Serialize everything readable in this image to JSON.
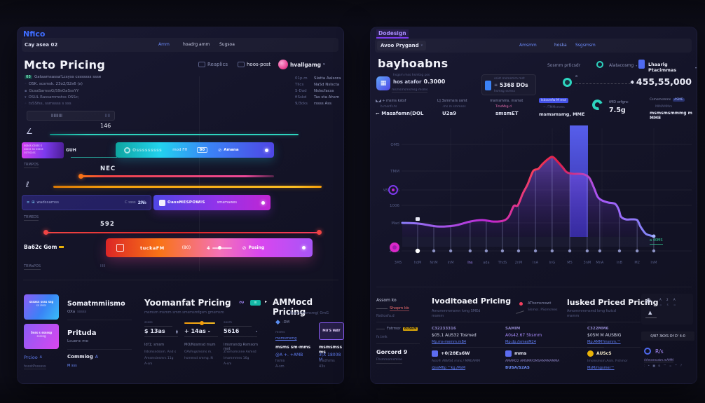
{
  "chart_data": {
    "type": "area-line with bar",
    "x_labels": [
      "3M5",
      "hdM",
      "NnM",
      "InM",
      "Ins",
      "ada",
      "ThdS",
      "2nM",
      "InA",
      "InG",
      "M5",
      "3nM",
      "MnA",
      "InB",
      "M2",
      "InM"
    ],
    "x_label_highlight_index": 4,
    "y_labels": [
      "OM5",
      "TMM",
      "TM5 2006",
      "1006",
      "Mad",
      "+006"
    ],
    "line": {
      "name": "price-trend",
      "points": [
        [
          0.0,
          12.6
        ],
        [
          0.067,
          11.9
        ],
        [
          0.139,
          9.4
        ],
        [
          0.206,
          10.1
        ],
        [
          0.269,
          13.8
        ],
        [
          0.317,
          15.1
        ],
        [
          0.361,
          13.8
        ],
        [
          0.4,
          14.5
        ],
        [
          0.422,
          18.2
        ],
        [
          0.442,
          27.7
        ],
        [
          0.458,
          28.3
        ],
        [
          0.478,
          39.0
        ],
        [
          0.497,
          47.2
        ],
        [
          0.519,
          59.1
        ],
        [
          0.539,
          61.0
        ],
        [
          0.556,
          65.4
        ],
        [
          0.581,
          70.4
        ],
        [
          0.597,
          71.7
        ],
        [
          0.617,
          67.3
        ],
        [
          0.636,
          62.3
        ],
        [
          0.653,
          57.9
        ],
        [
          0.678,
          56.6
        ],
        [
          0.7,
          56.6
        ],
        [
          0.722,
          56.0
        ],
        [
          0.742,
          52.8
        ],
        [
          0.761,
          43.4
        ],
        [
          0.775,
          35.8
        ],
        [
          0.792,
          32.7
        ],
        [
          0.817,
          30.8
        ],
        [
          0.844,
          29.6
        ],
        [
          0.858,
          24.5
        ],
        [
          0.867,
          18.2
        ],
        [
          0.886,
          15.7
        ],
        [
          0.908,
          15.7
        ],
        [
          0.931,
          15.1
        ],
        [
          0.944,
          9.4
        ],
        [
          0.964,
          3.1
        ],
        [
          0.983,
          1.3
        ],
        [
          0.997,
          0.6
        ]
      ],
      "color_stops": [
        "#8b7cf8",
        "#c026d3",
        "#f43f5e",
        "#e11d48",
        "#a855f7",
        "#818cf8"
      ]
    },
    "bar": {
      "t": 0.7,
      "value": 100,
      "color_top": "#5a62f5",
      "color_bottom": "#3c33c0"
    },
    "stems_t": [
      0.061,
      0.125,
      0.192,
      0.269,
      0.333,
      0.397,
      0.461,
      0.528,
      0.594,
      0.664,
      0.733,
      0.783,
      0.861,
      0.931,
      0.997
    ],
    "marker_stem_index": 0,
    "badge": {
      "text": "a 40MS",
      "color": "#34d399"
    }
  },
  "left": {
    "nav": {
      "logo": "Nfico",
      "breadcrumb": "Cay asea 02",
      "link1": "Amm",
      "link2": "hoadrg amm",
      "link3": "Sugsoa"
    },
    "header": {
      "title": "Mcto Pricing",
      "btn1": "Reaplics",
      "btn2": "hoos-post",
      "user": "hvallgamg",
      "caret": "▾"
    },
    "menu": {
      "i1_chip": "05",
      "i1": "Gataamsassa'Lcsyss csssssss ssse",
      "i2": "OSK. scsmsk. 23o2/32s6 (x)",
      "i3": "GcsaSamssG/S9sOaSssYY",
      "i4": "OSUL Rassammstss OSSc;",
      "i5": "tsSSfss, ssmssss s sss"
    },
    "meta": {
      "r1k": "01p.m",
      "r1v": "Slatta Aalsora",
      "r2k": "Tllcs",
      "r2v": "NaSd Nslscta",
      "r3k": "S-Dad",
      "r3v": "Nslscfacss",
      "r4k": "fiSskd",
      "r4v": "Tas sta Ahsm",
      "r5k": "9/3cks",
      "r5v": "rssss Ass"
    },
    "search": {
      "text": "IIIIIIIII",
      "hint": "IIII"
    },
    "sliders": {
      "v1": "146",
      "block1_l1": "ssass cssss s",
      "block1_l2": "sssss ss sssss",
      "block1_l3": "ssmsass",
      "block1_tag": "GUH",
      "pill1_t1": "Osssssssss",
      "pill1_t2": "mod FH",
      "pill1_chip": "80",
      "pill1_t3": "Amana",
      "lbl1": "TRMPOS",
      "v2": "NEC",
      "pill2_t1": "wadssamss",
      "pill2_t2": "C ssss",
      "pill2_t3": "2№",
      "pill2b_t1": "OassMESPOWIS",
      "pill2b_t2": "smamawes",
      "lbl2": "TRMEDS",
      "v3": "592",
      "bar3_label": "Ba62c Gom",
      "pill3_t1": "tuckaFM",
      "pill3_chip": "(80)",
      "pill3_t2": "4",
      "pill3_t3": "Posing",
      "lbl3": "TRMaPOS",
      "ticks": "IIIII"
    },
    "bottom": {
      "card1_l1": "sssass ssss ssg",
      "card1_l2": "ss Asss",
      "card1_title": "Somatmmiismo",
      "card1_sub": "OXa",
      "card1_sub2": "sssss",
      "card2_l1": "Ssss s sssssg",
      "card2_l2": "sssssg",
      "card2_title": "Prituda",
      "card2_sub": "Lcuenc mo",
      "link1": "Prcioo",
      "link1_sup": "A",
      "link1_sub": "hssstPssssss",
      "link2": "Commiog",
      "link2_sup": "A",
      "link2_sub": "M sss",
      "mid_title": "Yoomanfat Pricing",
      "mid_sub": "msmsm msmm smm smsmsmfgsm gmsmsm",
      "w1_top": "sssss",
      "w1_price": "$ 13as",
      "w1_l1": "Id!1; smsm",
      "w1_l2": "Ildsmsndsnm. And s",
      "w1_l3": "Amsmsiesmrs 11g",
      "w1_l4": "A-sm",
      "w2_price": "+ 14as -",
      "w2_l1": "MO/Nosmsd mum",
      "w2_l2": "OAV/ngsmsms m.",
      "w2_l3": "hsmmsd smmg. N",
      "w3_top": "sosm",
      "w3_price": "5616",
      "w3_l1": "Imsmsndg Rsmsom mst",
      "w3_l2": "Znsmsmsnne Asmsd",
      "w3_l3": "Imsmmmes 16g",
      "w3_l4": "A-sm",
      "right_title": "AMMocd Pricing",
      "right_sub": "Egsmrnmmsmg( OmG",
      "w4_tag": "-DM",
      "w4_t1": "msms",
      "w4_link": "msmsmsmg",
      "w4_bold": "msms sm-mms",
      "w4_blue": "@A +. +AMB",
      "w4_g1": "hsms",
      "w4_g2": "A-sm",
      "w5_card": "MU'S WAY",
      "w5_bold": "msmsmss ms",
      "w5_blue": "3(X 18008 M",
      "w5_g1": "msdhims",
      "w5_g2": "43s"
    }
  },
  "right": {
    "nav": {
      "logo": "Dodesign",
      "breadcrumb": "Avoo Prygand",
      "link1": "Amsmm",
      "link2": "hoska",
      "link3": "Ssgsmsm"
    },
    "header": {
      "title": "bayhoabns",
      "opt1": "Sosmm prticsdr",
      "opt2": "Alatacosmg",
      "opt3": "Lhaarlg Ptacimmas"
    },
    "stats": {
      "s1_top": "hsgsm mss hsmtsg pss",
      "s1_a": "hos atafor",
      "s1_b": "0.3000",
      "s1_sub": "msmsmsmsmsg msms",
      "s2_top": "ssist msmsmm mst",
      "s2_value": "5368 DOs",
      "s2_sub": "hsmsg ssmss",
      "s3_label": "a",
      "s4_value": "455,55,000"
    },
    "mini": {
      "m1_l1": "◣◢ + msms kstsf",
      "m1_l2": "b.msnfs.ts",
      "m1_l3": "⌐ Masafemn(DOL",
      "m2_l1": "Ŀ] 3smmsrs ssmt",
      "m2_l2": ".ms m smmsss",
      "m2_l3": "U2a9",
      "m3_l1": "msmsmms. msmst",
      "m3_l2": "TmsMsg d",
      "m3_l3": "smsmET",
      "m4_chip": "lskssmfw M mst",
      "m4_l2": "~ /TMMsmms",
      "m4_l3": "msmsmsmg, MME",
      "m5_l1": "tMD orfgnc",
      "m5_l3": "7.5g",
      "m6_l1": "Csmsmsmms",
      "m6_chip": "ASME",
      "m6_l2": "MIMAMMm",
      "m6_l3": "msmsmsmmmg m MME"
    },
    "bottom": {
      "a1": "Assom ko",
      "a_red": "Shopm kb",
      "a2": "Nsttosfu.d",
      "a3": "Fotrmor",
      "a_chip": "AUSEM",
      "a4": "fs.tmk",
      "a_bold": "Gorcord 9",
      "a5": "Fhsmmomsmlse",
      "b_title": "Ivoditoaed Pricing",
      "b_sub1": "Amommmmsmn kmg SMEd",
      "b_sub2": "msmm",
      "b_dot": "AThomsmswt",
      "b_dot_sub": "Slsmss. PSsmsmes",
      "b1_label": "C32233316",
      "b1_value": "$05.1 AUS32 Tosmed",
      "b1_link": "Mp.ms-memm.mB4",
      "b2_label": "SAMIM",
      "b2_value": "A0s42.67 5ksmm",
      "b2_link": "Mp.dp./jsmesM24",
      "b3_bold": "+0/28Es6W",
      "b3_text": "Asis® AWAS4 mins / MMEAMM",
      "b3_link": "@ssM6p ™kg./MsM",
      "b4_bold": "mms",
      "b4_text": "AMAM22 AMSMP/OMSAMAMAMMA",
      "b4_link": "BUSA/S2AS",
      "c_title": "lusked Priced Pricing",
      "c_sub1": "Amommmmsmd kmg fszicd",
      "c_sub2": "msmm",
      "c1_label": "C322MM6",
      "c1_value": "$05M M AUSBIG",
      "c1_link": "Mp.AMM?msmm.™",
      "c2_bold": "AUScS",
      "c2_text": "Imsmsmsm.Asm. P.shmor",
      "c2_link": "MsM/mgsmer™",
      "d_dots": "A 2 A",
      "d_dots2": "= s =",
      "d_box": "0/87 3KXS Of D' 4:0",
      "d_rs": "R/s",
      "d_t1": "AAmsmssstm.mAMM",
      "d_t2": ": • ■ & ™ = ™ ?"
    }
  }
}
